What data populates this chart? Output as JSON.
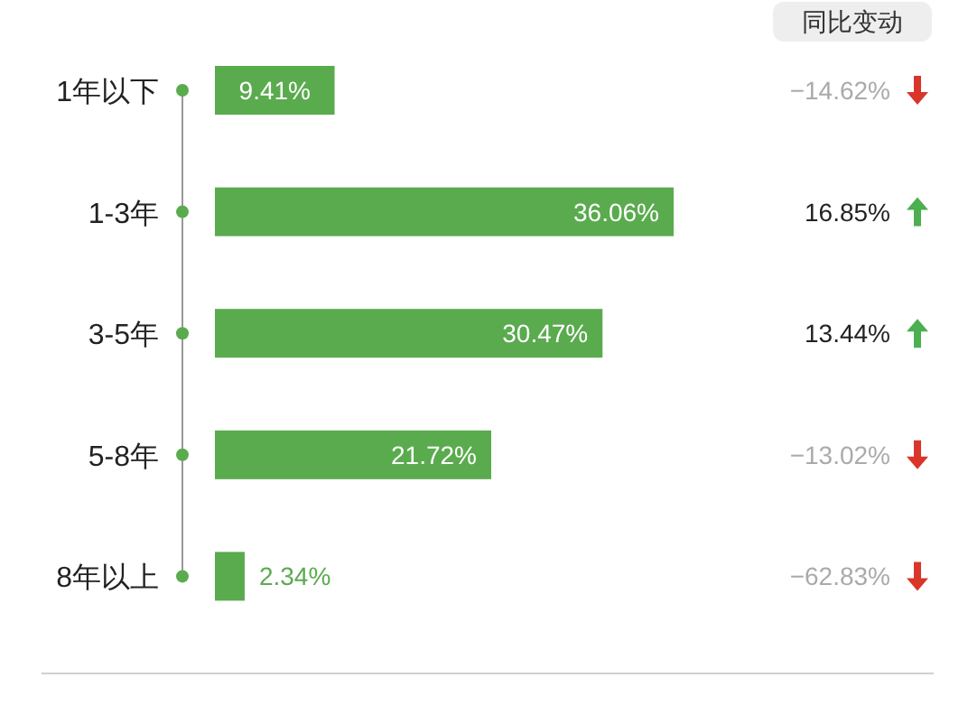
{
  "chart_data": {
    "type": "bar",
    "orientation": "horizontal",
    "title": "同比变动",
    "categories": [
      "1年以下",
      "1-3年",
      "3-5年",
      "5-8年",
      "8年以上"
    ],
    "values": [
      9.41,
      36.06,
      30.47,
      21.72,
      2.34
    ],
    "value_labels": [
      "9.41%",
      "36.06%",
      "30.47%",
      "21.72%",
      "2.34%"
    ],
    "color": "#5aab4e",
    "annotations": [
      "−14.62%",
      "16.85%",
      "13.44%",
      "−13.02%",
      "−62.83%"
    ]
  }
}
